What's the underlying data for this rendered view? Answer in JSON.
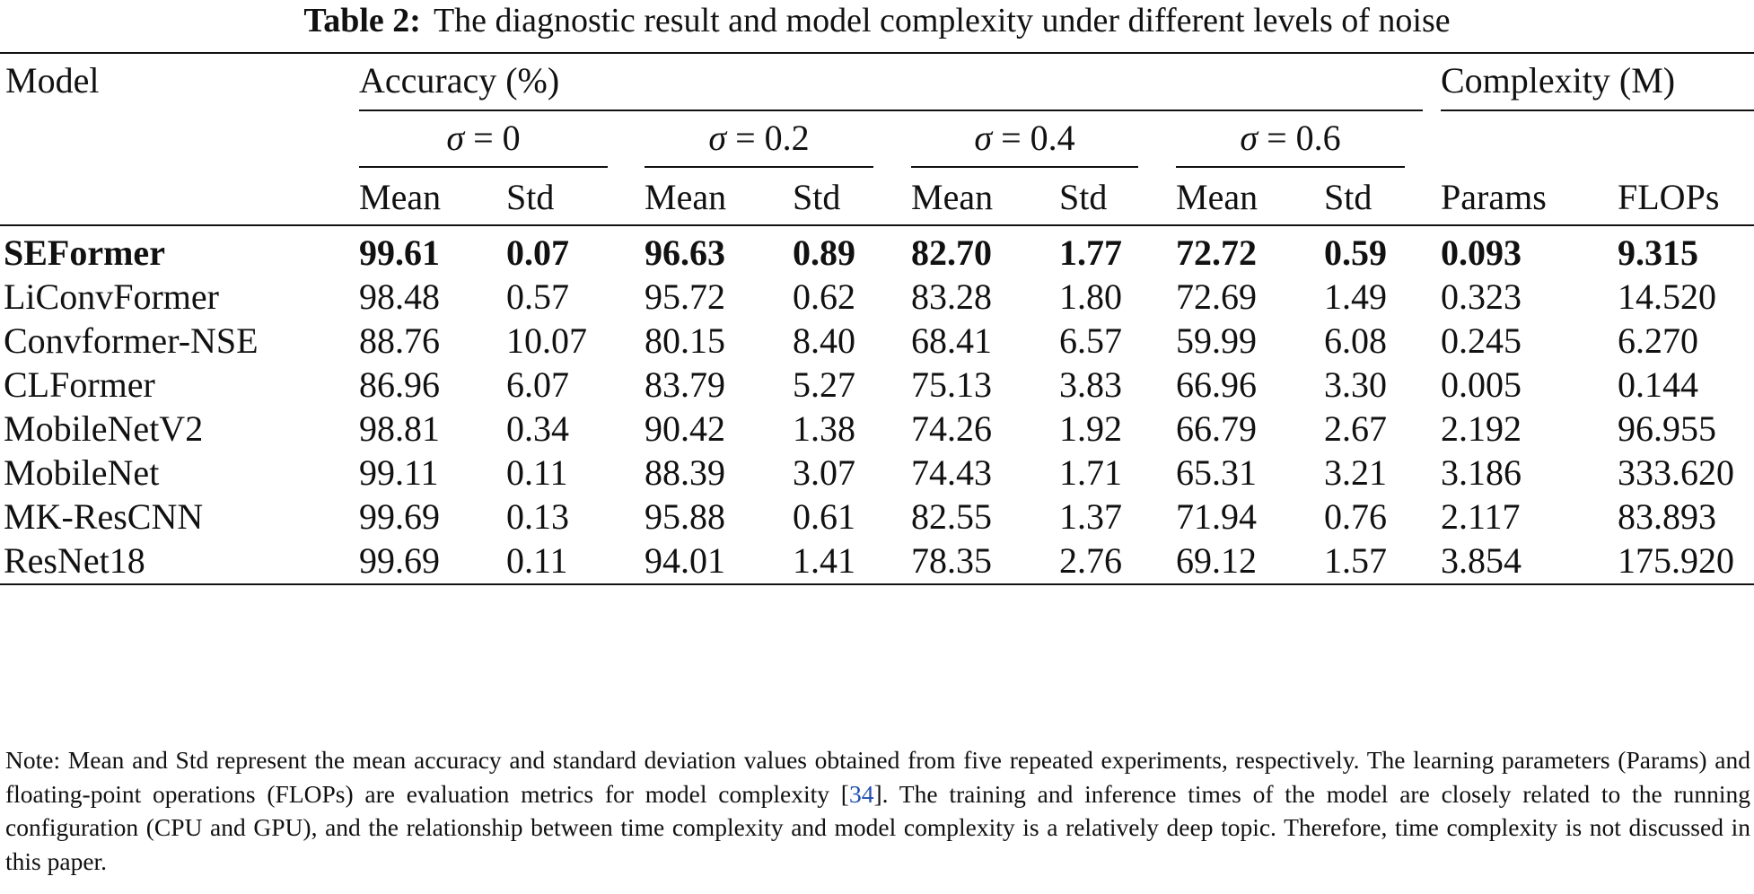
{
  "caption": {
    "label": "Table 2:",
    "text": "The diagnostic result and model complexity under different levels of noise"
  },
  "header": {
    "model": "Model",
    "accuracy": "Accuracy (%)",
    "complexity": "Complexity (M)",
    "sigma_symbol": "σ",
    "sigma_levels": [
      "= 0",
      "= 0.2",
      "= 0.4",
      "= 0.6"
    ],
    "mean": "Mean",
    "std": "Std",
    "params": "Params",
    "flops": "FLOPs"
  },
  "rows": [
    {
      "model": "SEFormer",
      "bold": true,
      "values": [
        "99.61",
        "0.07",
        "96.63",
        "0.89",
        "82.70",
        "1.77",
        "72.72",
        "0.59",
        "0.093",
        "9.315"
      ]
    },
    {
      "model": "LiConvFormer",
      "bold": false,
      "values": [
        "98.48",
        "0.57",
        "95.72",
        "0.62",
        "83.28",
        "1.80",
        "72.69",
        "1.49",
        "0.323",
        "14.520"
      ]
    },
    {
      "model": "Convformer-NSE",
      "bold": false,
      "values": [
        "88.76",
        "10.07",
        "80.15",
        "8.40",
        "68.41",
        "6.57",
        "59.99",
        "6.08",
        "0.245",
        "6.270"
      ]
    },
    {
      "model": "CLFormer",
      "bold": false,
      "values": [
        "86.96",
        "6.07",
        "83.79",
        "5.27",
        "75.13",
        "3.83",
        "66.96",
        "3.30",
        "0.005",
        "0.144"
      ]
    },
    {
      "model": "MobileNetV2",
      "bold": false,
      "values": [
        "98.81",
        "0.34",
        "90.42",
        "1.38",
        "74.26",
        "1.92",
        "66.79",
        "2.67",
        "2.192",
        "96.955"
      ]
    },
    {
      "model": "MobileNet",
      "bold": false,
      "values": [
        "99.11",
        "0.11",
        "88.39",
        "3.07",
        "74.43",
        "1.71",
        "65.31",
        "3.21",
        "3.186",
        "333.620"
      ]
    },
    {
      "model": "MK-ResCNN",
      "bold": false,
      "values": [
        "99.69",
        "0.13",
        "95.88",
        "0.61",
        "82.55",
        "1.37",
        "71.94",
        "0.76",
        "2.117",
        "83.893"
      ]
    },
    {
      "model": "ResNet18",
      "bold": false,
      "values": [
        "99.69",
        "0.11",
        "94.01",
        "1.41",
        "78.35",
        "2.76",
        "69.12",
        "1.57",
        "3.854",
        "175.920"
      ]
    }
  ],
  "note": {
    "part1": "Note: Mean and Std represent the mean accuracy and standard deviation values obtained from five repeated experiments, respectively. The learning parameters (Params) and floating-point operations (FLOPs) are evaluation metrics for model complexity [",
    "ref": "34",
    "part2": "]. The training and inference times of the model are closely related to the running configuration (CPU and GPU), and the relationship between time complexity and model complexity is a relatively deep topic. Therefore, time complexity is not discussed in this paper."
  }
}
